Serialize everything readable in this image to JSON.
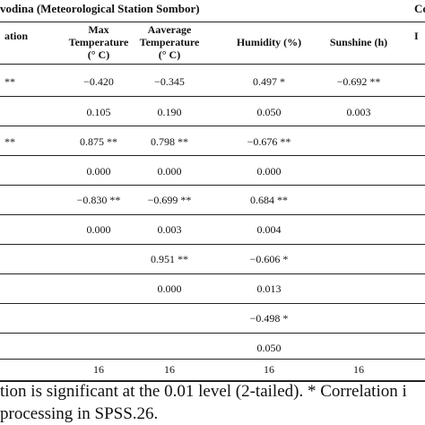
{
  "header": {
    "left_title": "vodina (Meteorological Station Sombor)",
    "right_title": "Co"
  },
  "columns": {
    "first": "ation",
    "max_temp": [
      "Max",
      "Temperature",
      "(° C)"
    ],
    "avg_temp": [
      "Aaverage",
      "Temperature",
      "(° C)"
    ],
    "humidity": "Humidity (%)",
    "sunshine": "Sunshine (h)",
    "last": "I"
  },
  "rows": [
    {
      "first": "**",
      "max": "−0.420",
      "avg": "−0.345",
      "hum": "0.497 *",
      "sun": "−0.692 **"
    },
    {
      "first": "",
      "max": "0.105",
      "avg": "0.190",
      "hum": "0.050",
      "sun": "0.003"
    },
    {
      "first": "**",
      "max": "0.875 **",
      "avg": "0.798 **",
      "hum": "−0.676 **",
      "sun": ""
    },
    {
      "first": "",
      "max": "0.000",
      "avg": "0.000",
      "hum": "0.000",
      "sun": ""
    },
    {
      "first": "",
      "max": "−0.830 **",
      "avg": "−0.699 **",
      "hum": "0.684 **",
      "sun": ""
    },
    {
      "first": "",
      "max": "0.000",
      "avg": "0.003",
      "hum": "0.004",
      "sun": ""
    },
    {
      "first": "",
      "max": "",
      "avg": "0.951 **",
      "hum": "−0.606 *",
      "sun": ""
    },
    {
      "first": "",
      "max": "",
      "avg": "0.000",
      "hum": "0.013",
      "sun": ""
    },
    {
      "first": "",
      "max": "",
      "avg": "",
      "hum": "−0.498 *",
      "sun": ""
    },
    {
      "first": "",
      "max": "",
      "avg": "",
      "hum": "0.050",
      "sun": ""
    },
    {
      "first": "",
      "max": "16",
      "avg": "16",
      "hum": "16",
      "sun": "16"
    }
  ],
  "footnotes": {
    "line1": "tion is significant at the 0.01 level (2-tailed). * Correlation i",
    "line2": "processing in SPSS.26."
  }
}
